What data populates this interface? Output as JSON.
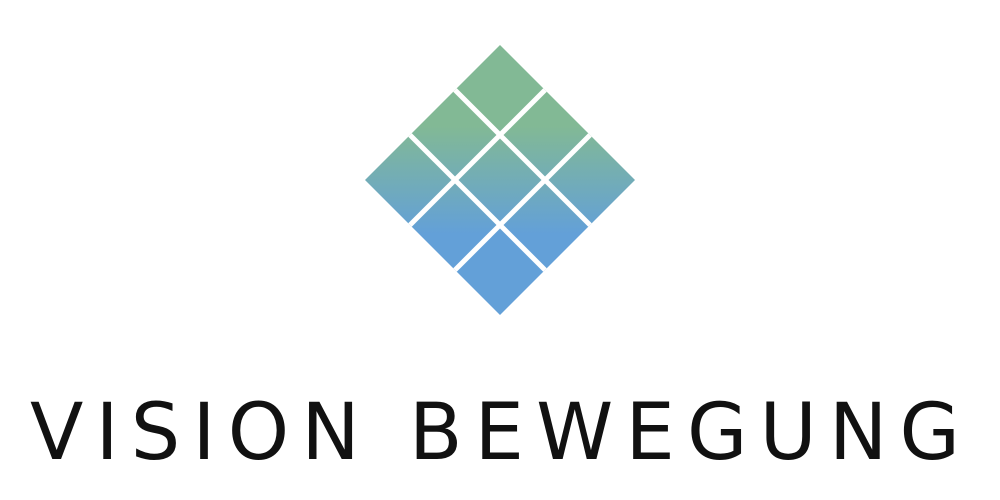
{
  "logo": {
    "name": "diamond-grid-logo",
    "wordmark": "VISION BEWEGUNG",
    "colors": {
      "top_green": "#82b995",
      "bottom_blue": "#63a0d8",
      "text": "#111111",
      "background": "#ffffff"
    }
  }
}
